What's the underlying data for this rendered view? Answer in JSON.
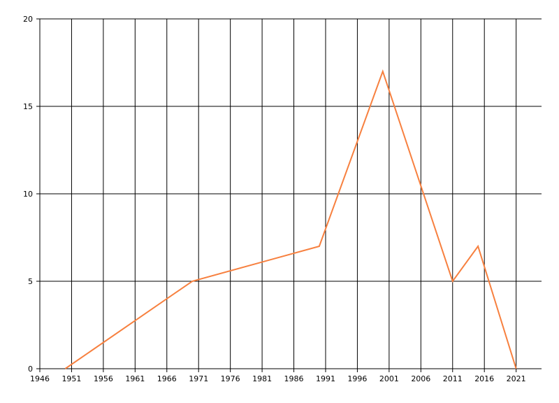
{
  "chart_data": {
    "type": "line",
    "x": [
      1950,
      1970,
      1990,
      2000,
      2011,
      2015,
      2021
    ],
    "values": [
      0,
      5,
      7,
      17,
      5,
      7,
      0
    ],
    "color": "#f7803f",
    "xlim": [
      1946,
      2025
    ],
    "xticks": [
      1946,
      1951,
      1956,
      1961,
      1966,
      1971,
      1976,
      1981,
      1986,
      1991,
      1996,
      2001,
      2006,
      2011,
      2016,
      2021
    ],
    "ylim": [
      0,
      20
    ],
    "yticks": [
      0,
      5,
      10,
      15,
      20
    ],
    "grid": true
  }
}
